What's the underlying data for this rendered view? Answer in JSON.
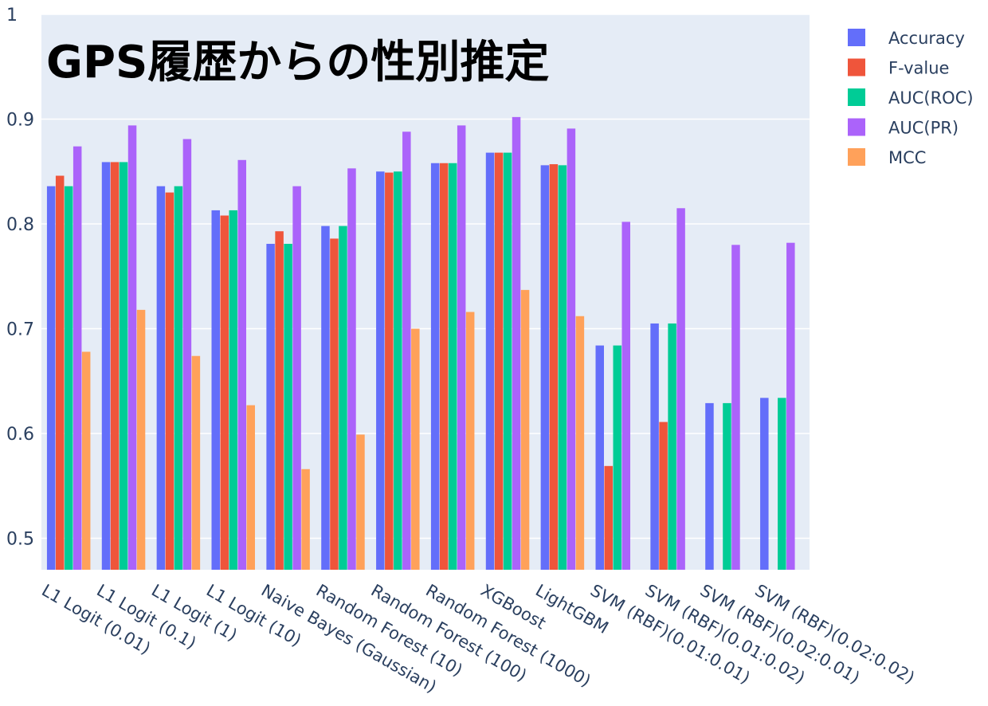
{
  "chart_data": {
    "type": "bar",
    "title": "GPS履歴からの性別推定",
    "categories": [
      "L1 Logit (0.01)",
      "L1 Logit (0.1)",
      "L1 Logit (1)",
      "L1 Logit (10)",
      "Naive Bayes (Gaussian)",
      "Random Forest (10)",
      "Random Forest (100)",
      "Random Forest (1000)",
      "XGBoost",
      "LightGBM",
      "SVM (RBF)(0.01:0.01)",
      "SVM (RBF)(0.01:0.02)",
      "SVM (RBF)(0.02:0.01)",
      "SVM (RBF)(0.02:0.02)"
    ],
    "series": [
      {
        "name": "Accuracy",
        "color": "#636efa",
        "values": [
          0.836,
          0.859,
          0.836,
          0.813,
          0.781,
          0.798,
          0.85,
          0.858,
          0.868,
          0.856,
          0.684,
          0.705,
          0.629,
          0.634
        ]
      },
      {
        "name": "F-value",
        "color": "#ef553b",
        "values": [
          0.846,
          0.859,
          0.83,
          0.808,
          0.793,
          0.786,
          0.849,
          0.858,
          0.868,
          0.857,
          0.569,
          0.611,
          null,
          null
        ]
      },
      {
        "name": "AUC(ROC)",
        "color": "#00cc96",
        "values": [
          0.836,
          0.859,
          0.836,
          0.813,
          0.781,
          0.798,
          0.85,
          0.858,
          0.868,
          0.856,
          0.684,
          0.705,
          0.629,
          0.634
        ]
      },
      {
        "name": "AUC(PR)",
        "color": "#ab63fa",
        "values": [
          0.874,
          0.894,
          0.881,
          0.861,
          0.836,
          0.853,
          0.888,
          0.894,
          0.902,
          0.891,
          0.802,
          0.815,
          0.78,
          0.782
        ]
      },
      {
        "name": "MCC",
        "color": "#ffa15a",
        "values": [
          0.678,
          0.718,
          0.674,
          0.627,
          0.566,
          0.599,
          0.7,
          0.716,
          0.737,
          0.712,
          null,
          null,
          null,
          null
        ]
      }
    ],
    "yticks": [
      "0.5",
      "0.6",
      "0.7",
      "0.8",
      "0.9",
      "1"
    ],
    "ylim": [
      0.47,
      1.0
    ],
    "grid": true,
    "legend_position": "top-right",
    "plot_background": "#e5ecf6"
  }
}
